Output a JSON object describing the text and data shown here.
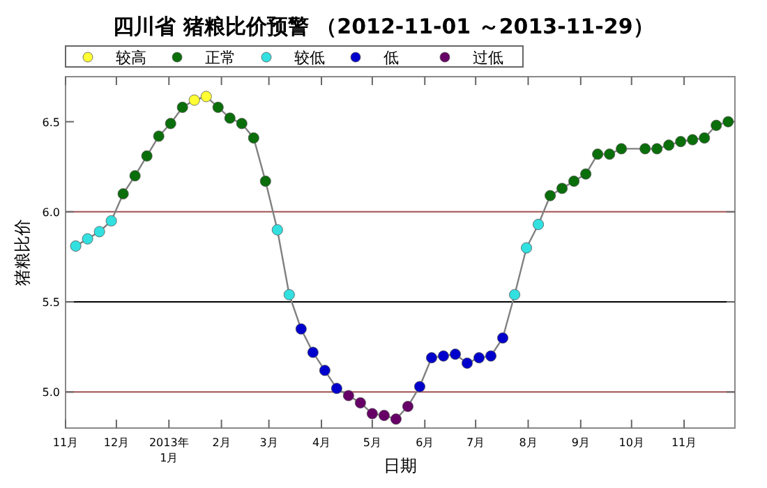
{
  "chart_data": {
    "type": "line",
    "title": "四川省 猪粮比价预警 （2012-11-01 ～2013-11-29）",
    "xlabel": "日期",
    "ylabel": "猪粮比价",
    "x": [
      "2012-11-07",
      "2012-11-14",
      "2012-11-21",
      "2012-11-28",
      "2012-12-05",
      "2012-12-12",
      "2012-12-19",
      "2012-12-26",
      "2013-01-02",
      "2013-01-09",
      "2013-01-16",
      "2013-01-23",
      "2013-01-30",
      "2013-02-06",
      "2013-02-13",
      "2013-02-20",
      "2013-02-27",
      "2013-03-06",
      "2013-03-13",
      "2013-03-20",
      "2013-03-27",
      "2013-04-03",
      "2013-04-10",
      "2013-04-17",
      "2013-04-24",
      "2013-05-01",
      "2013-05-08",
      "2013-05-15",
      "2013-05-22",
      "2013-05-29",
      "2013-06-05",
      "2013-06-12",
      "2013-06-19",
      "2013-06-26",
      "2013-07-03",
      "2013-07-10",
      "2013-07-17",
      "2013-07-24",
      "2013-07-31",
      "2013-08-07",
      "2013-08-14",
      "2013-08-21",
      "2013-08-28",
      "2013-09-04",
      "2013-09-11",
      "2013-09-18",
      "2013-09-25",
      "2013-10-09",
      "2013-10-16",
      "2013-10-23",
      "2013-10-30",
      "2013-11-06",
      "2013-11-13",
      "2013-11-20",
      "2013-11-27"
    ],
    "series": [
      {
        "type": "line",
        "color": "#808080",
        "marker": "none",
        "values": [
          5.81,
          5.85,
          5.89,
          5.95,
          6.1,
          6.2,
          6.31,
          6.42,
          6.49,
          6.58,
          6.62,
          6.64,
          6.58,
          6.52,
          6.49,
          6.41,
          6.17,
          5.9,
          5.54,
          5.35,
          5.22,
          5.12,
          5.02,
          4.98,
          4.94,
          4.88,
          4.87,
          4.85,
          4.92,
          5.03,
          5.19,
          5.2,
          5.21,
          5.16,
          5.19,
          5.2,
          5.3,
          5.54,
          5.8,
          5.93,
          6.09,
          6.13,
          6.17,
          6.21,
          6.32,
          6.32,
          6.35,
          6.35,
          6.35,
          6.37,
          6.39,
          6.4,
          6.41,
          6.48,
          6.5
        ]
      },
      {
        "type": "scatter",
        "name": "较高",
        "color": "#ffff33",
        "values": [
          null,
          null,
          null,
          null,
          null,
          null,
          null,
          null,
          null,
          null,
          6.62,
          6.64,
          null,
          null,
          null,
          null,
          null,
          null,
          null,
          null,
          null,
          null,
          null,
          null,
          null,
          null,
          null,
          null,
          null,
          null,
          null,
          null,
          null,
          null,
          null,
          null,
          null,
          null,
          null,
          null,
          null,
          null,
          null,
          null,
          null,
          null,
          null,
          null,
          null,
          null,
          null,
          null,
          null,
          null,
          null
        ]
      },
      {
        "type": "scatter",
        "name": "正常",
        "color": "#0a6e0a",
        "values": [
          null,
          null,
          null,
          null,
          6.1,
          6.2,
          6.31,
          6.42,
          6.49,
          6.58,
          null,
          null,
          6.58,
          6.52,
          6.49,
          6.41,
          6.17,
          null,
          null,
          null,
          null,
          null,
          null,
          null,
          null,
          null,
          null,
          null,
          null,
          null,
          null,
          null,
          null,
          null,
          null,
          null,
          null,
          null,
          null,
          null,
          6.09,
          6.13,
          6.17,
          6.21,
          6.32,
          6.32,
          6.35,
          6.35,
          6.35,
          6.37,
          6.39,
          6.4,
          6.41,
          6.48,
          6.5
        ]
      },
      {
        "type": "scatter",
        "name": "较低",
        "color": "#33e0e0",
        "values": [
          5.81,
          5.85,
          5.89,
          5.95,
          null,
          null,
          null,
          null,
          null,
          null,
          null,
          null,
          null,
          null,
          null,
          null,
          null,
          5.9,
          5.54,
          null,
          null,
          null,
          null,
          null,
          null,
          null,
          null,
          null,
          null,
          null,
          null,
          null,
          null,
          null,
          null,
          null,
          null,
          5.54,
          5.8,
          5.93,
          null,
          null,
          null,
          null,
          null,
          null,
          null,
          null,
          null,
          null,
          null,
          null,
          null,
          null,
          null
        ]
      },
      {
        "type": "scatter",
        "name": "低",
        "color": "#0000cc",
        "values": [
          null,
          null,
          null,
          null,
          null,
          null,
          null,
          null,
          null,
          null,
          null,
          null,
          null,
          null,
          null,
          null,
          null,
          null,
          null,
          5.35,
          5.22,
          5.12,
          5.02,
          null,
          null,
          null,
          null,
          null,
          null,
          5.03,
          5.19,
          5.2,
          5.21,
          5.16,
          5.19,
          5.2,
          5.3,
          null,
          null,
          null,
          null,
          null,
          null,
          null,
          null,
          null,
          null,
          null,
          null,
          null,
          null,
          null,
          null,
          null,
          null
        ]
      },
      {
        "type": "scatter",
        "name": "过低",
        "color": "#660066",
        "values": [
          null,
          null,
          null,
          null,
          null,
          null,
          null,
          null,
          null,
          null,
          null,
          null,
          null,
          null,
          null,
          null,
          null,
          null,
          null,
          null,
          null,
          null,
          null,
          4.98,
          4.94,
          4.88,
          4.87,
          4.85,
          4.92,
          null,
          null,
          null,
          null,
          null,
          null,
          null,
          null,
          null,
          null,
          null,
          null,
          null,
          null,
          null,
          null,
          null,
          null,
          null,
          null,
          null,
          null,
          null,
          null,
          null,
          null
        ]
      }
    ],
    "marker": "circle",
    "legend": "top",
    "grid": false,
    "ylim": [
      4.8,
      6.75
    ],
    "yticks": [
      {
        "value": 5,
        "label": "5.0"
      },
      {
        "value": 5.5,
        "label": "5.5"
      },
      {
        "value": 6,
        "label": "6.0"
      },
      {
        "value": 6.5,
        "label": "6.5"
      }
    ],
    "xlim": [
      "2012-11-01",
      "2013-12-01"
    ],
    "xticks": [
      {
        "value": "2012-11-01",
        "label": "11月"
      },
      {
        "value": "2012-12-01",
        "label": "12月"
      },
      {
        "value": "2013-01-01",
        "label": "2013年\n1月"
      },
      {
        "value": "2013-02-01",
        "label": "2月"
      },
      {
        "value": "2013-03-01",
        "label": "3月"
      },
      {
        "value": "2013-04-01",
        "label": "4月"
      },
      {
        "value": "2013-05-01",
        "label": "5月"
      },
      {
        "value": "2013-06-01",
        "label": "6月"
      },
      {
        "value": "2013-07-01",
        "label": "7月"
      },
      {
        "value": "2013-08-01",
        "label": "8月"
      },
      {
        "value": "2013-09-01",
        "label": "9月"
      },
      {
        "value": "2013-10-01",
        "label": "10月"
      },
      {
        "value": "2013-11-01",
        "label": "11月"
      }
    ],
    "ref_lines": [
      {
        "axis": "y",
        "value": 5,
        "color": "#a05050"
      },
      {
        "axis": "y",
        "value": 5.5,
        "color": "#000000"
      },
      {
        "axis": "y",
        "value": 6,
        "color": "#a05050"
      }
    ]
  }
}
